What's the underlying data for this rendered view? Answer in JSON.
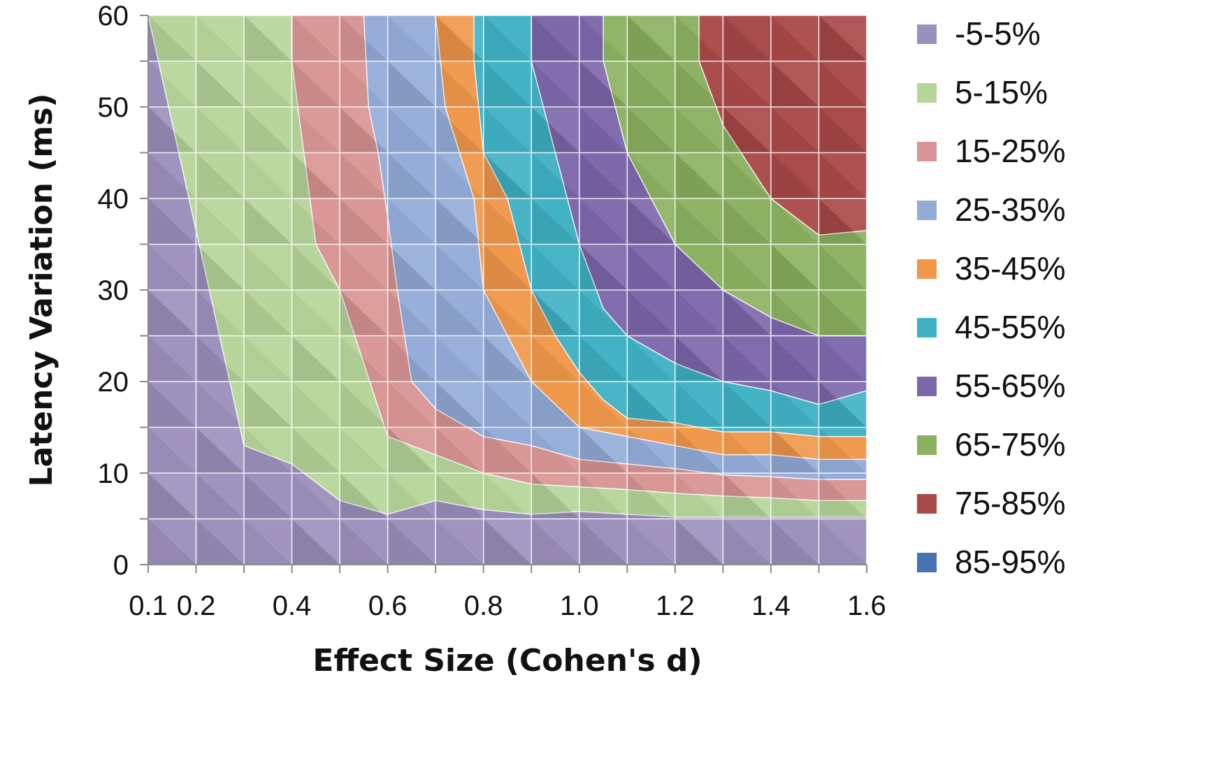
{
  "chart_data": {
    "type": "heatmap",
    "subtype": "filled-contour",
    "title": "",
    "xlabel": "Effect Size (Cohen's d)",
    "ylabel": "Latency Variation (ms)",
    "xlim": [
      0.1,
      1.6
    ],
    "ylim": [
      0,
      60
    ],
    "x_ticks": [
      "0.1",
      "0.2",
      "0.4",
      "0.6",
      "0.8",
      "1.0",
      "1.2",
      "1.4",
      "1.6"
    ],
    "y_ticks": [
      "0",
      "10",
      "20",
      "30",
      "40",
      "50",
      "60"
    ],
    "grid": true,
    "legend_position": "right",
    "levels": [
      {
        "label": "-5-5%",
        "color": "#9c90bd"
      },
      {
        "label": "5-15%",
        "color": "#b7d69a"
      },
      {
        "label": "15-25%",
        "color": "#d99594"
      },
      {
        "label": "25-35%",
        "color": "#93acd8"
      },
      {
        "label": "35-45%",
        "color": "#f0974a"
      },
      {
        "label": "45-55%",
        "color": "#3fb1c4"
      },
      {
        "label": "55-65%",
        "color": "#7c67aa"
      },
      {
        "label": "65-75%",
        "color": "#8cb160"
      },
      {
        "label": "75-85%",
        "color": "#a94848"
      },
      {
        "label": "85-95%",
        "color": "#4574b0"
      }
    ],
    "grid_columns": [
      0.1,
      0.2,
      0.3,
      0.4,
      0.5,
      0.6,
      0.7,
      0.8,
      0.9,
      1.0,
      1.1,
      1.2,
      1.3,
      1.4,
      1.5,
      1.6
    ],
    "grid_rows": [
      0,
      5,
      10,
      15,
      20,
      25,
      30,
      35,
      40,
      45,
      50,
      55,
      60
    ],
    "boundaries": [
      {
        "upper_level": "5-15%",
        "x": [
          0.1,
          0.1,
          0.3,
          0.4,
          0.5,
          0.6,
          0.7,
          0.8,
          0.9,
          1.0,
          1.1,
          1.2,
          1.3,
          1.4,
          1.5,
          1.6
        ],
        "y": [
          60,
          60,
          13,
          11,
          7,
          5.5,
          7,
          6,
          5.5,
          5.8,
          5.5,
          5.2,
          5.2,
          5.2,
          5.2,
          5.2
        ]
      },
      {
        "upper_level": "15-25%",
        "x": [
          0.4,
          0.4,
          0.45,
          0.5,
          0.6,
          0.7,
          0.8,
          0.9,
          1.0,
          1.1,
          1.2,
          1.3,
          1.4,
          1.5,
          1.6
        ],
        "y": [
          60,
          55,
          35,
          30,
          14,
          12,
          10,
          8.8,
          8.5,
          8.2,
          7.8,
          7.5,
          7.3,
          7.0,
          7.0
        ]
      },
      {
        "upper_level": "25-35%",
        "x": [
          0.55,
          0.56,
          0.58,
          0.6,
          0.62,
          0.65,
          0.7,
          0.8,
          0.9,
          1.0,
          1.1,
          1.2,
          1.3,
          1.4,
          1.5,
          1.6
        ],
        "y": [
          60,
          50,
          45,
          38,
          30,
          20,
          17,
          14,
          13,
          11.5,
          11,
          10.5,
          9.8,
          9.6,
          9.3,
          9.3
        ]
      },
      {
        "upper_level": "35-45%",
        "x": [
          0.7,
          0.72,
          0.75,
          0.78,
          0.8,
          0.85,
          0.9,
          1.0,
          1.1,
          1.2,
          1.3,
          1.4,
          1.5,
          1.6
        ],
        "y": [
          60,
          50,
          45,
          40,
          30,
          25,
          20,
          15,
          14,
          13,
          12,
          12,
          11.5,
          11.5
        ]
      },
      {
        "upper_level": "45-55%",
        "x": [
          0.78,
          0.78,
          0.8,
          0.85,
          0.9,
          0.95,
          1.0,
          1.05,
          1.1,
          1.2,
          1.3,
          1.4,
          1.5,
          1.6
        ],
        "y": [
          60,
          55,
          45,
          40,
          30,
          25,
          21,
          18,
          16,
          15.5,
          14.5,
          14.5,
          14,
          14
        ]
      },
      {
        "upper_level": "55-65%",
        "x": [
          0.9,
          0.9,
          0.95,
          1.0,
          1.05,
          1.1,
          1.2,
          1.3,
          1.4,
          1.5,
          1.6
        ],
        "y": [
          60,
          55,
          45,
          35,
          28,
          25,
          22,
          20,
          19,
          17.5,
          19
        ]
      },
      {
        "upper_level": "65-75%",
        "x": [
          1.05,
          1.05,
          1.1,
          1.15,
          1.2,
          1.3,
          1.4,
          1.5,
          1.6
        ],
        "y": [
          60,
          55,
          45,
          40,
          35,
          30,
          27,
          25,
          25
        ]
      },
      {
        "upper_level": "75-85%",
        "x": [
          1.25,
          1.25,
          1.3,
          1.4,
          1.5,
          1.6
        ],
        "y": [
          60,
          55,
          48,
          40,
          36,
          36.5
        ]
      }
    ]
  }
}
